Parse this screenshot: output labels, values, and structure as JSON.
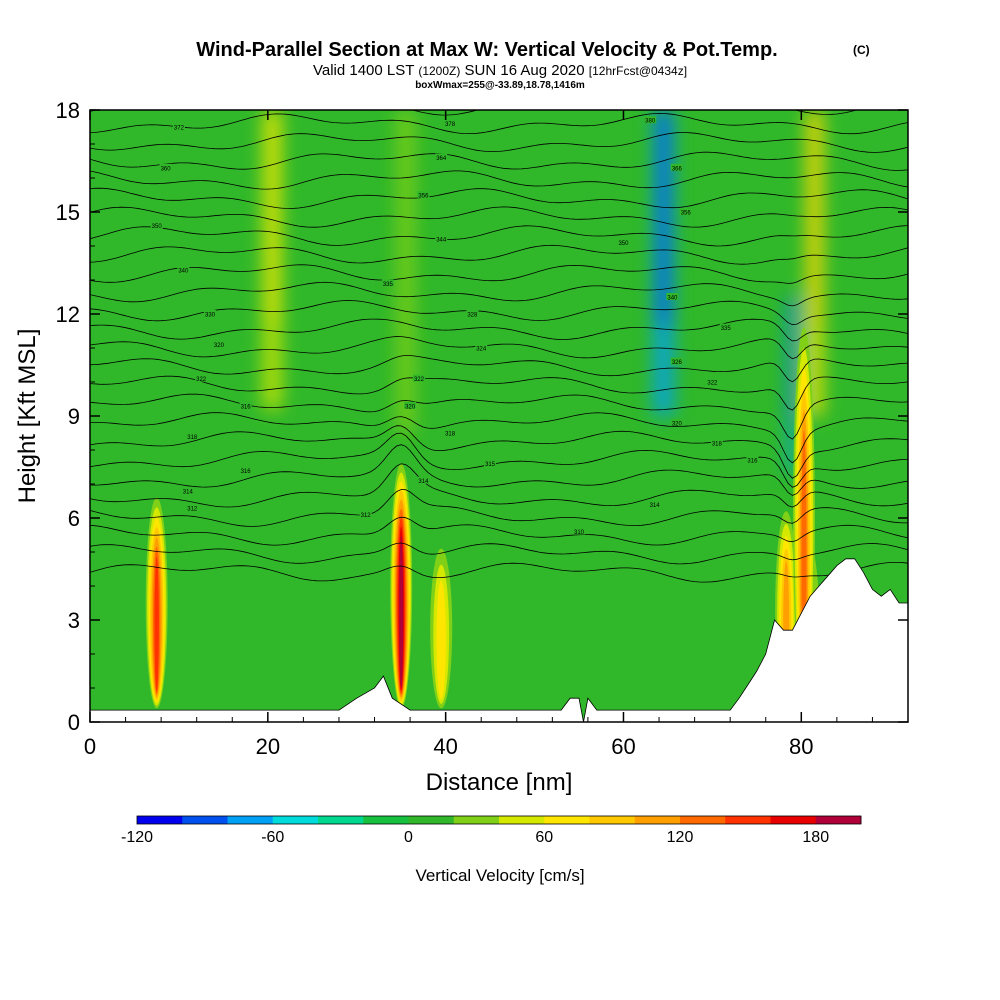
{
  "chart_data": {
    "type": "heatmap",
    "title": "Wind-Parallel Section at Max W: Vertical Velocity & Pot.Temp.",
    "title_mark": "(C)",
    "subtitle_parts": [
      "Valid 1400 LST",
      "(1200Z)",
      "SUN 16 Aug 2020",
      "[12hrFcst@0434z]"
    ],
    "info_line": "boxWmax=255@-33.89,18.78,1416m",
    "xlabel": "Distance [nm]",
    "ylabel": "Height [Kft MSL]",
    "xlim": [
      0,
      92
    ],
    "ylim": [
      0,
      18
    ],
    "xticks": [
      "0",
      "20",
      "40",
      "60",
      "80"
    ],
    "yticks": [
      "0",
      "3",
      "6",
      "9",
      "12",
      "15",
      "18"
    ],
    "colorbar_label": "Vertical Velocity [cm/s]",
    "colorbar_ticks": [
      "-120",
      "-60",
      "0",
      "60",
      "120",
      "180"
    ],
    "colorbar_range": [
      -120,
      200
    ],
    "colorbar_colors": [
      "#0000ee",
      "#0050f0",
      "#00a0f5",
      "#00dcdc",
      "#00d890",
      "#18c040",
      "#30b82a",
      "#80d018",
      "#d4e800",
      "#ffe600",
      "#ffc800",
      "#ffa000",
      "#ff6a00",
      "#ff3200",
      "#e80000",
      "#b0003a"
    ],
    "updraft_cores": [
      {
        "x": 7.5,
        "ytop": 6.6,
        "max": 160
      },
      {
        "x": 35.0,
        "ytop": 7.6,
        "max": 190
      },
      {
        "x": 39.5,
        "ytop": 5.1,
        "max": 70
      },
      {
        "x": 78.3,
        "ytop": 6.2,
        "max": 120
      },
      {
        "x": 80.8,
        "ytop": 5.3,
        "max": 60
      },
      {
        "x": 80.3,
        "ytop": 11.6,
        "max": 130
      }
    ],
    "upper_bands": [
      {
        "x": 20.5,
        "w": 2.0,
        "ymin": 9.2,
        "ymax": 18,
        "value": 55
      },
      {
        "x": 35.5,
        "w": 2.0,
        "ymin": 8.5,
        "ymax": 18,
        "value": 35
      },
      {
        "x": 64.5,
        "w": 2.2,
        "ymin": 9.0,
        "ymax": 18,
        "value": -75
      },
      {
        "x": 79.0,
        "w": 1.0,
        "ymin": 7.3,
        "ymax": 12.5,
        "value": -70
      },
      {
        "x": 81.5,
        "w": 1.8,
        "ymin": 9.0,
        "ymax": 18,
        "value": 60
      }
    ],
    "terrain": [
      [
        0,
        0.35
      ],
      [
        28,
        0.35
      ],
      [
        30,
        0.7
      ],
      [
        32,
        1.0
      ],
      [
        33,
        1.35
      ],
      [
        34,
        0.7
      ],
      [
        36,
        0.35
      ],
      [
        53,
        0.35
      ],
      [
        54,
        0.7
      ],
      [
        55,
        0.7
      ],
      [
        55.5,
        0
      ],
      [
        56,
        0.7
      ],
      [
        57,
        0.35
      ],
      [
        72,
        0.35
      ],
      [
        73,
        0.7
      ],
      [
        74,
        1.1
      ],
      [
        75,
        1.5
      ],
      [
        76,
        2.0
      ],
      [
        77,
        3.0
      ],
      [
        78,
        2.7
      ],
      [
        79,
        2.7
      ],
      [
        80,
        3.2
      ],
      [
        81,
        3.7
      ],
      [
        82,
        4.0
      ],
      [
        83,
        4.3
      ],
      [
        84,
        4.6
      ],
      [
        85,
        4.8
      ],
      [
        86,
        4.8
      ],
      [
        87,
        4.4
      ],
      [
        88,
        3.9
      ],
      [
        89,
        3.7
      ],
      [
        90,
        3.9
      ],
      [
        91,
        3.5
      ],
      [
        92,
        3.5
      ]
    ],
    "theta_labels": [
      {
        "x": 10,
        "y": 17.5,
        "text": "372"
      },
      {
        "x": 8.5,
        "y": 16.3,
        "text": "360"
      },
      {
        "x": 7.5,
        "y": 14.6,
        "text": "350"
      },
      {
        "x": 10.5,
        "y": 13.3,
        "text": "340"
      },
      {
        "x": 13.5,
        "y": 12.0,
        "text": "330"
      },
      {
        "x": 14.5,
        "y": 11.1,
        "text": "320"
      },
      {
        "x": 12.5,
        "y": 10.1,
        "text": "322"
      },
      {
        "x": 17.5,
        "y": 9.3,
        "text": "316"
      },
      {
        "x": 11.5,
        "y": 8.4,
        "text": "318"
      },
      {
        "x": 17.5,
        "y": 7.4,
        "text": "316"
      },
      {
        "x": 11.0,
        "y": 6.8,
        "text": "314"
      },
      {
        "x": 11.5,
        "y": 6.3,
        "text": "312"
      },
      {
        "x": 31.0,
        "y": 6.1,
        "text": "312"
      },
      {
        "x": 40.5,
        "y": 17.6,
        "text": "378"
      },
      {
        "x": 39.5,
        "y": 16.6,
        "text": "364"
      },
      {
        "x": 37.5,
        "y": 15.5,
        "text": "356"
      },
      {
        "x": 39.5,
        "y": 14.2,
        "text": "344"
      },
      {
        "x": 33.5,
        "y": 12.9,
        "text": "335"
      },
      {
        "x": 43.0,
        "y": 12.0,
        "text": "328"
      },
      {
        "x": 44.0,
        "y": 11.0,
        "text": "324"
      },
      {
        "x": 37.0,
        "y": 10.1,
        "text": "322"
      },
      {
        "x": 36.0,
        "y": 9.3,
        "text": "320"
      },
      {
        "x": 40.5,
        "y": 8.5,
        "text": "318"
      },
      {
        "x": 45.0,
        "y": 7.6,
        "text": "315"
      },
      {
        "x": 37.5,
        "y": 7.1,
        "text": "314"
      },
      {
        "x": 55.0,
        "y": 5.6,
        "text": "310"
      },
      {
        "x": 63.0,
        "y": 17.7,
        "text": "380"
      },
      {
        "x": 66.0,
        "y": 16.3,
        "text": "366"
      },
      {
        "x": 67.0,
        "y": 15.0,
        "text": "356"
      },
      {
        "x": 60.0,
        "y": 14.1,
        "text": "350"
      },
      {
        "x": 65.5,
        "y": 12.5,
        "text": "340"
      },
      {
        "x": 71.5,
        "y": 11.6,
        "text": "335"
      },
      {
        "x": 66.0,
        "y": 10.6,
        "text": "326"
      },
      {
        "x": 70.0,
        "y": 10.0,
        "text": "322"
      },
      {
        "x": 66.0,
        "y": 8.8,
        "text": "320"
      },
      {
        "x": 70.5,
        "y": 8.2,
        "text": "318"
      },
      {
        "x": 74.5,
        "y": 7.7,
        "text": "316"
      },
      {
        "x": 63.5,
        "y": 6.4,
        "text": "314"
      }
    ],
    "grid": false
  }
}
